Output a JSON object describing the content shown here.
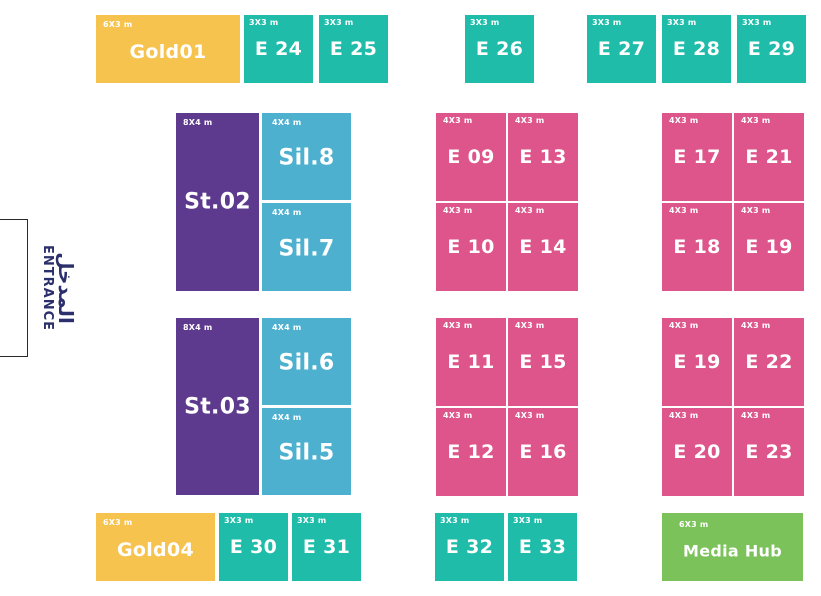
{
  "entrance": {
    "arabic": "المدخل",
    "english": "ENTRANCE"
  },
  "colors": {
    "gold": "#F7C34F",
    "teal": "#1FBCA9",
    "blue": "#4EB0CF",
    "purple": "#5E3A8E",
    "pink": "#DD558A",
    "green": "#7CC25A",
    "entrance_text": "#2b2f6b"
  },
  "booths": {
    "gold01": {
      "label": "Gold01",
      "size": "6X3 m"
    },
    "e24": {
      "label": "E 24",
      "size": "3X3 m"
    },
    "e25": {
      "label": "E 25",
      "size": "3X3 m"
    },
    "e26": {
      "label": "E 26",
      "size": "3X3 m"
    },
    "e27": {
      "label": "E 27",
      "size": "3X3 m"
    },
    "e28": {
      "label": "E 28",
      "size": "3X3 m"
    },
    "e29": {
      "label": "E 29",
      "size": "3X3 m"
    },
    "st02": {
      "label": "St.02",
      "size": "8X4 m"
    },
    "sil8": {
      "label": "Sil.8",
      "size": "4X4 m"
    },
    "sil7": {
      "label": "Sil.7",
      "size": "4X4 m"
    },
    "e09": {
      "label": "E 09",
      "size": "4X3 m"
    },
    "e13": {
      "label": "E 13",
      "size": "4X3 m"
    },
    "e10": {
      "label": "E 10",
      "size": "4X3 m"
    },
    "e14": {
      "label": "E 14",
      "size": "4X3 m"
    },
    "e17": {
      "label": "E 17",
      "size": "4X3 m"
    },
    "e21": {
      "label": "E 21",
      "size": "4X3 m"
    },
    "e18": {
      "label": "E 18",
      "size": "4X3 m"
    },
    "e19a": {
      "label": "E 19",
      "size": "4X3 m"
    },
    "st03": {
      "label": "St.03",
      "size": "8X4 m"
    },
    "sil6": {
      "label": "Sil.6",
      "size": "4X4 m"
    },
    "sil5": {
      "label": "Sil.5",
      "size": "4X4 m"
    },
    "e11": {
      "label": "E 11",
      "size": "4X3 m"
    },
    "e15": {
      "label": "E 15",
      "size": "4X3 m"
    },
    "e12": {
      "label": "E 12",
      "size": "4X3 m"
    },
    "e16": {
      "label": "E 16",
      "size": "4X3 m"
    },
    "e19b": {
      "label": "E 19",
      "size": "4X3 m"
    },
    "e22": {
      "label": "E 22",
      "size": "4X3 m"
    },
    "e20": {
      "label": "E 20",
      "size": "4X3 m"
    },
    "e23": {
      "label": "E 23",
      "size": "4X3 m"
    },
    "gold04": {
      "label": "Gold04",
      "size": "6X3 m"
    },
    "e30": {
      "label": "E 30",
      "size": "3X3 m"
    },
    "e31": {
      "label": "E 31",
      "size": "3X3 m"
    },
    "e32": {
      "label": "E 32",
      "size": "3X3 m"
    },
    "e33": {
      "label": "E 33",
      "size": "3X3 m"
    },
    "media_hub": {
      "label": "Media Hub",
      "size": "6X3 m"
    }
  }
}
